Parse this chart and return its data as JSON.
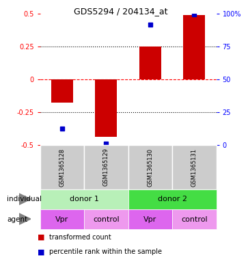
{
  "title": "GDS5294 / 204134_at",
  "categories": [
    "GSM1365128",
    "GSM1365129",
    "GSM1365130",
    "GSM1365131"
  ],
  "bar_values": [
    -0.18,
    -0.44,
    0.25,
    0.49
  ],
  "percentile_values": [
    -0.375,
    -0.492,
    0.415,
    0.492
  ],
  "bar_color": "#cc0000",
  "percentile_color": "#0000cc",
  "ylim": [
    -0.5,
    0.5
  ],
  "yticks_left": [
    -0.5,
    -0.25,
    0.0,
    0.25,
    0.5
  ],
  "yticks_left_labels": [
    "-0.5",
    "-0.25",
    "0",
    "0.25",
    "0.5"
  ],
  "yticks_right": [
    0,
    25,
    50,
    75,
    100
  ],
  "yticks_right_labels": [
    "0",
    "25",
    "50",
    "75",
    "100%"
  ],
  "individual_labels": [
    "donor 1",
    "donor 2"
  ],
  "individual_colors": [
    "#b8f0b8",
    "#44dd44"
  ],
  "agent_labels": [
    "Vpr",
    "control",
    "Vpr",
    "control"
  ],
  "agent_colors": [
    "#dd66ee",
    "#ee99ee",
    "#dd66ee",
    "#ee99ee"
  ],
  "sample_bg_color": "#cccccc",
  "bar_width": 0.5,
  "legend_red_label": "transformed count",
  "legend_blue_label": "percentile rank within the sample"
}
